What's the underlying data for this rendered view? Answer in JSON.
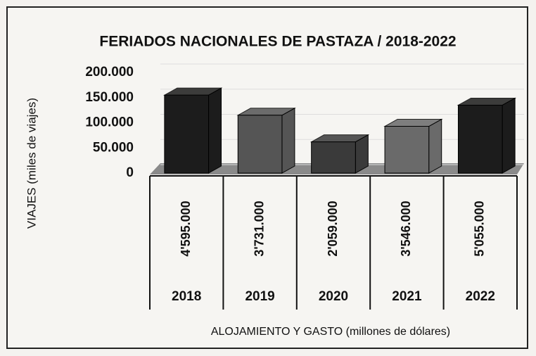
{
  "chart_data": {
    "type": "bar3d",
    "title": "FERIADOS NACIONALES DE PASTAZA / 2018-2022",
    "y_label": "VIAJES (miles de viajes)",
    "x_label": "ALOJAMIENTO Y GASTO (millones de dólares)",
    "categories": [
      "2018",
      "2019",
      "2020",
      "2021",
      "2022"
    ],
    "values": [
      155000,
      115000,
      62000,
      93000,
      135000
    ],
    "colors": [
      "#1c1c1c",
      "#555555",
      "#3a3a3a",
      "#6a6a6a",
      "#1c1c1c"
    ],
    "table": [
      "4'595.000",
      "3'731.000",
      "2'059.000",
      "3'546.000",
      "5'055.000"
    ],
    "ylim": [
      0,
      200000
    ],
    "yticks": [
      0,
      {
        "value": 50000,
        "label": "50.000"
      },
      {
        "value": 100000,
        "label": "100.000"
      },
      {
        "value": 150000,
        "label": "150.000"
      },
      {
        "value": 200000,
        "label": "200.000"
      }
    ],
    "grid": true
  }
}
